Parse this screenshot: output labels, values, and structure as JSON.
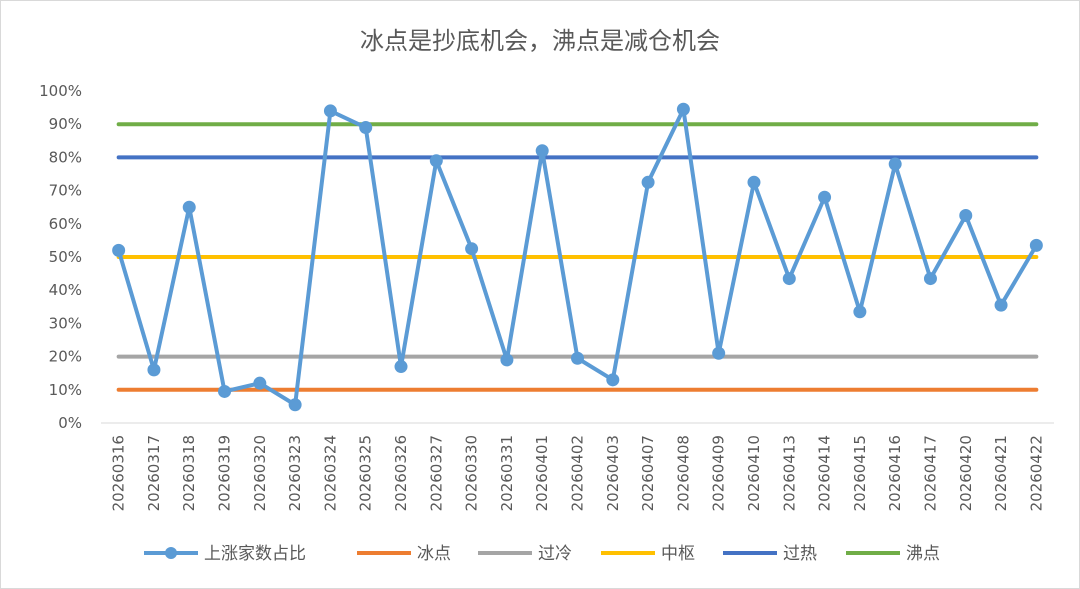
{
  "chart_data": {
    "type": "line",
    "title": "冰点是抄底机会，沸点是减仓机会",
    "xlabel": "",
    "ylabel": "",
    "ylim": [
      0,
      1
    ],
    "y_ticks": [
      "0%",
      "10%",
      "20%",
      "30%",
      "40%",
      "50%",
      "60%",
      "70%",
      "80%",
      "90%",
      "100%"
    ],
    "grid": false,
    "legend_position": "bottom",
    "categories": [
      "20260316",
      "20260317",
      "20260318",
      "20260319",
      "20260320",
      "20260323",
      "20260324",
      "20260325",
      "20260326",
      "20260327",
      "20260330",
      "20260331",
      "20260401",
      "20260402",
      "20260403",
      "20260407",
      "20260408",
      "20260409",
      "20260410",
      "20260413",
      "20260414",
      "20260415",
      "20260416",
      "20260417",
      "20260420",
      "20260421",
      "20260422"
    ],
    "series": [
      {
        "name": "上涨家数占比",
        "color": "#5b9bd5",
        "marker": "circle",
        "values": [
          0.52,
          0.16,
          0.65,
          0.095,
          0.12,
          0.055,
          0.94,
          0.89,
          0.17,
          0.79,
          0.525,
          0.19,
          0.82,
          0.195,
          0.13,
          0.725,
          0.945,
          0.21,
          0.725,
          0.435,
          0.68,
          0.335,
          0.78,
          0.435,
          0.625,
          0.355,
          0.535
        ]
      },
      {
        "name": "冰点",
        "color": "#ed7d31",
        "values": [
          0.1,
          0.1,
          0.1,
          0.1,
          0.1,
          0.1,
          0.1,
          0.1,
          0.1,
          0.1,
          0.1,
          0.1,
          0.1,
          0.1,
          0.1,
          0.1,
          0.1,
          0.1,
          0.1,
          0.1,
          0.1,
          0.1,
          0.1,
          0.1,
          0.1,
          0.1,
          0.1
        ]
      },
      {
        "name": "过冷",
        "color": "#a5a5a5",
        "values": [
          0.2,
          0.2,
          0.2,
          0.2,
          0.2,
          0.2,
          0.2,
          0.2,
          0.2,
          0.2,
          0.2,
          0.2,
          0.2,
          0.2,
          0.2,
          0.2,
          0.2,
          0.2,
          0.2,
          0.2,
          0.2,
          0.2,
          0.2,
          0.2,
          0.2,
          0.2,
          0.2
        ]
      },
      {
        "name": "中枢",
        "color": "#ffc000",
        "values": [
          0.5,
          0.5,
          0.5,
          0.5,
          0.5,
          0.5,
          0.5,
          0.5,
          0.5,
          0.5,
          0.5,
          0.5,
          0.5,
          0.5,
          0.5,
          0.5,
          0.5,
          0.5,
          0.5,
          0.5,
          0.5,
          0.5,
          0.5,
          0.5,
          0.5,
          0.5,
          0.5
        ]
      },
      {
        "name": "过热",
        "color": "#4472c4",
        "values": [
          0.8,
          0.8,
          0.8,
          0.8,
          0.8,
          0.8,
          0.8,
          0.8,
          0.8,
          0.8,
          0.8,
          0.8,
          0.8,
          0.8,
          0.8,
          0.8,
          0.8,
          0.8,
          0.8,
          0.8,
          0.8,
          0.8,
          0.8,
          0.8,
          0.8,
          0.8,
          0.8
        ]
      },
      {
        "name": "沸点",
        "color": "#70ad47",
        "values": [
          0.9,
          0.9,
          0.9,
          0.9,
          0.9,
          0.9,
          0.9,
          0.9,
          0.9,
          0.9,
          0.9,
          0.9,
          0.9,
          0.9,
          0.9,
          0.9,
          0.9,
          0.9,
          0.9,
          0.9,
          0.9,
          0.9,
          0.9,
          0.9,
          0.9,
          0.9,
          0.9
        ]
      }
    ]
  }
}
